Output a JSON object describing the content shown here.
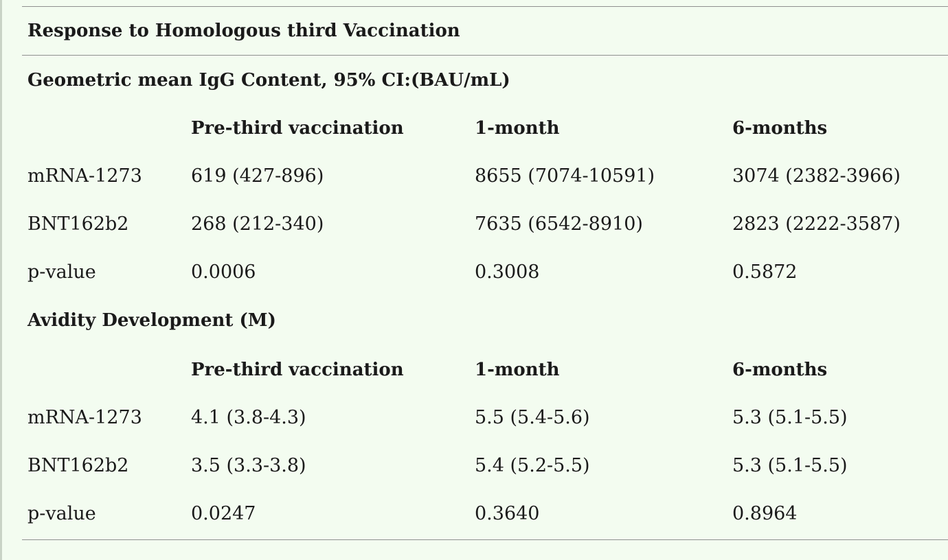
{
  "table": {
    "title": "Response to Homologous third Vaccination",
    "sections": [
      {
        "heading": "Geometric mean IgG Content, 95% CI:(BAU/mL)",
        "columns": [
          "",
          "Pre-third vaccination",
          "1-month",
          "6-months"
        ],
        "rows": [
          [
            "mRNA-1273",
            "619 (427-896)",
            "8655 (7074-10591)",
            "3074 (2382-3966)"
          ],
          [
            "BNT162b2",
            "268 (212-340)",
            "7635 (6542-8910)",
            "2823 (2222-3587)"
          ],
          [
            "p-value",
            "0.0006",
            "0.3008",
            "0.5872"
          ]
        ]
      },
      {
        "heading": "Avidity Development (M)",
        "columns": [
          "",
          "Pre-third vaccination",
          "1-month",
          "6-months"
        ],
        "rows": [
          [
            "mRNA-1273",
            "4.1 (3.8-4.3)",
            "5.5 (5.4-5.6)",
            "5.3 (5.1-5.5)"
          ],
          [
            "BNT162b2",
            "3.5 (3.3-3.8)",
            "5.4 (5.2-5.5)",
            "5.3 (5.1-5.5)"
          ],
          [
            "p-value",
            "0.0247",
            "0.3640",
            "0.8964"
          ]
        ]
      }
    ]
  }
}
